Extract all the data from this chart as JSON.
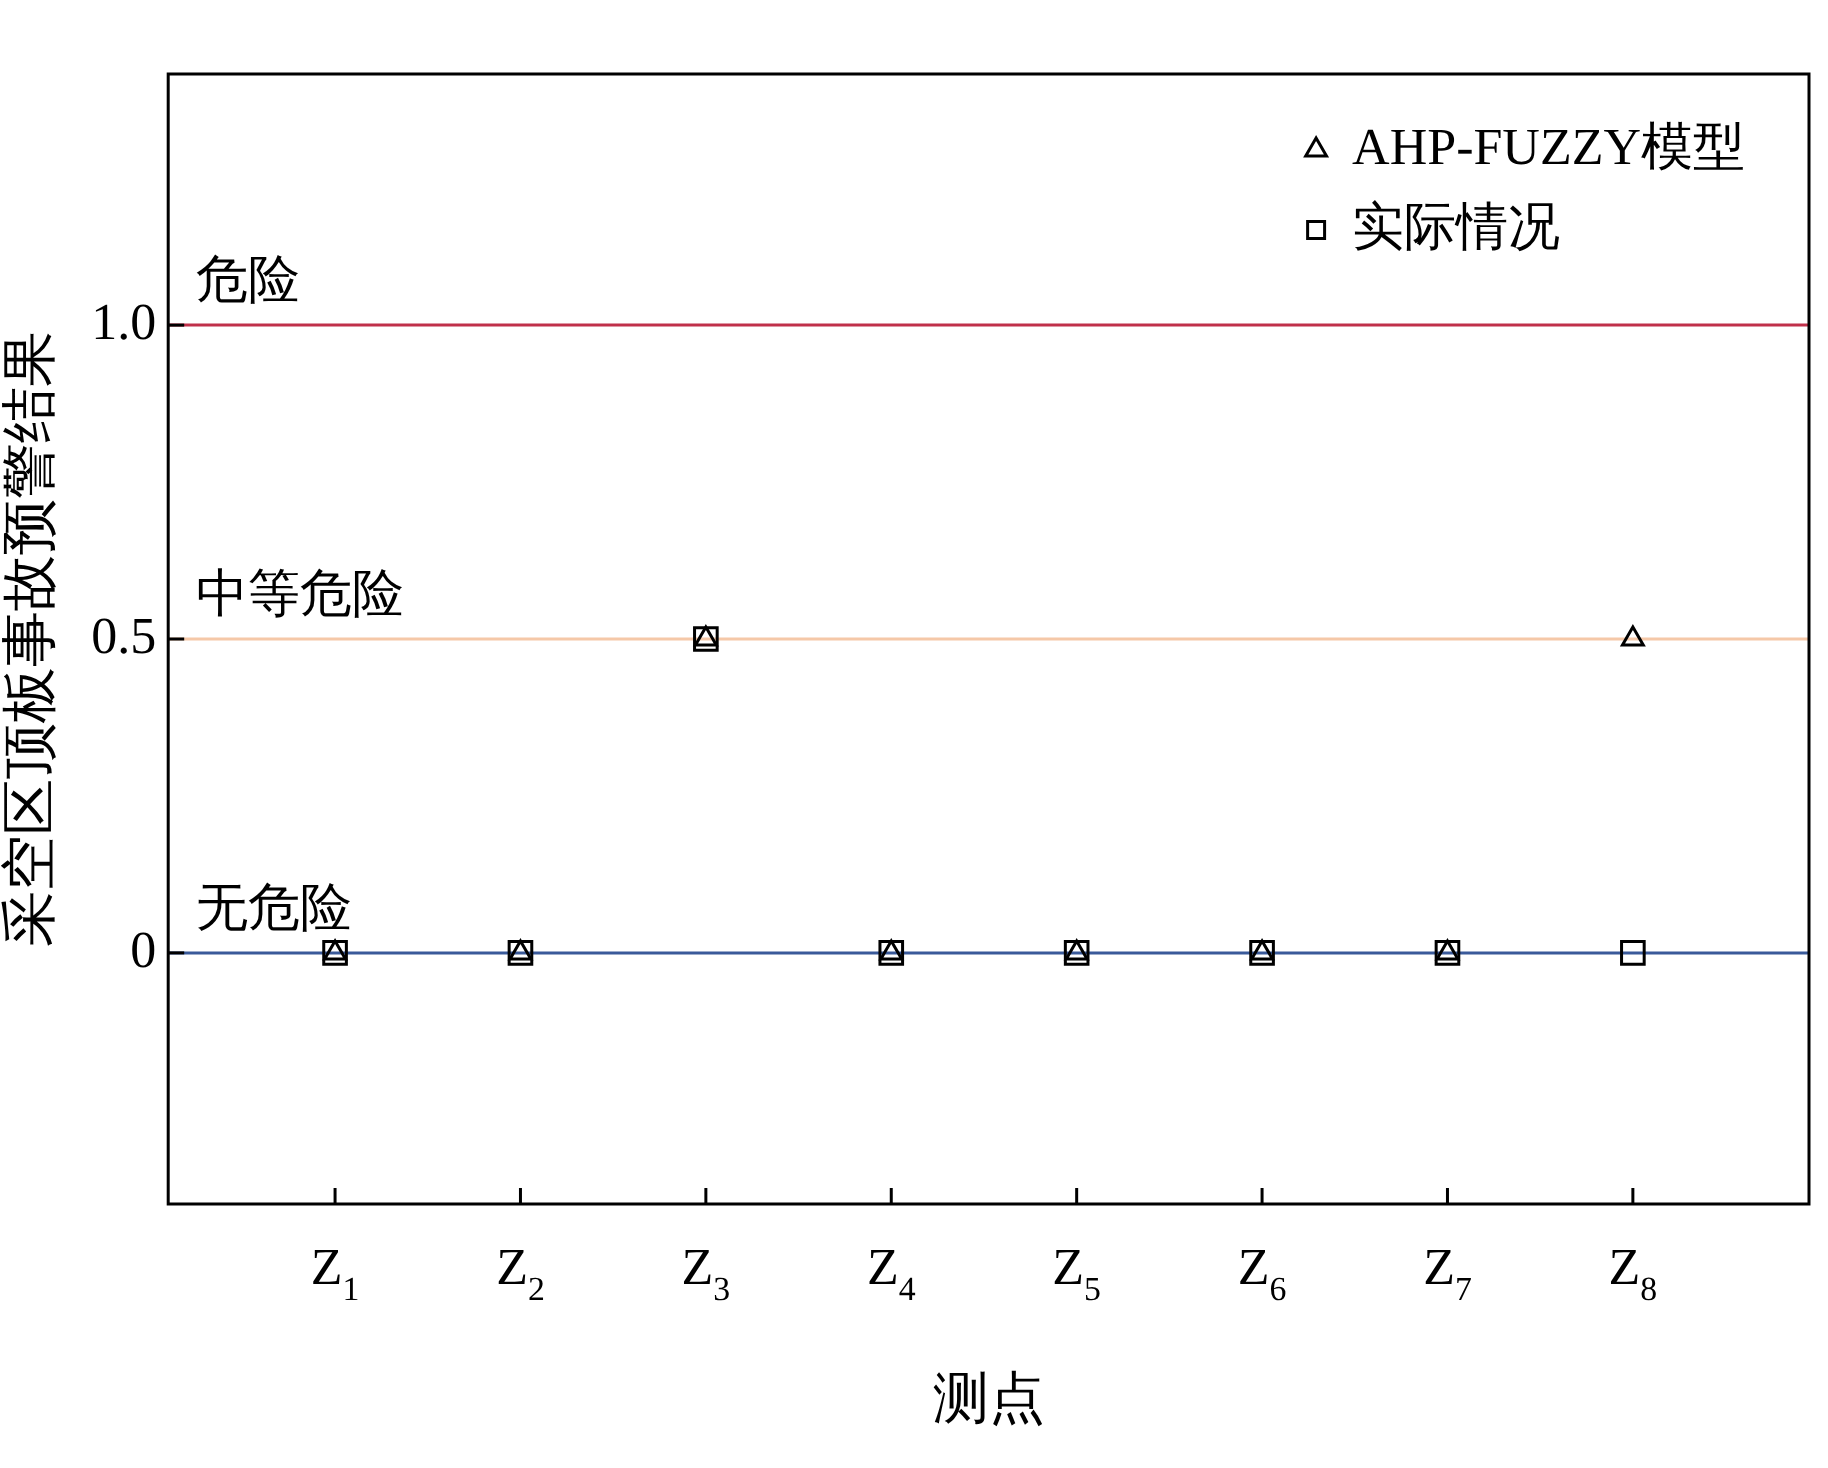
{
  "chart_data": {
    "type": "scatter",
    "xlabel": "测点",
    "ylabel": "采空区顶板事故预警结果",
    "categories": [
      "Z$_{1}$",
      "Z$_{2}$",
      "Z$_{3}$",
      "Z$_{4}$",
      "Z$_{5}$",
      "Z$_{6}$",
      "Z$_{7}$",
      "Z$_{8}$"
    ],
    "series": [
      {
        "name": "AHP-FUZZY模型",
        "color": "#000000",
        "marker": "triangle",
        "values": [
          0,
          0,
          0.5,
          0,
          0,
          0,
          0,
          0.5
        ]
      },
      {
        "name": "实际情况",
        "color": "#000000",
        "marker": "square",
        "values": [
          0,
          0,
          0.5,
          0,
          0,
          0,
          0,
          0
        ]
      }
    ],
    "ylim": [
      -0.4,
      1.4
    ],
    "yticks": [
      0,
      0.5,
      {
        "value": 1,
        "label": "1.0"
      }
    ],
    "ref_lines": [
      {
        "axis": "y",
        "value": 1,
        "label": "危险",
        "color": "#c0304a"
      },
      {
        "axis": "y",
        "value": 0.5,
        "label": "中等危险",
        "color": "#f5c8a8"
      },
      {
        "axis": "y",
        "value": 0,
        "label": "无危险",
        "color": "#3a5a9a"
      }
    ],
    "legend": "top right"
  }
}
